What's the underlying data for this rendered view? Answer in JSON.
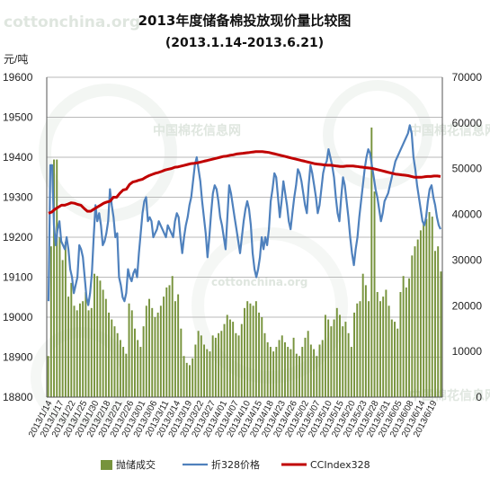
{
  "watermark": {
    "site": "cottonchina.org",
    "cn": "中国棉花信息网",
    "en": "cottonchina.org"
  },
  "chart_data": {
    "type": "bar+line",
    "title": "2013年度储备棉投放现价量比较图",
    "subtitle": "(2013.1.14-2013.6.21)",
    "ylabel_left": "元/吨",
    "ylim_left": [
      18800,
      19600
    ],
    "yticks_left": [
      18800,
      18900,
      19000,
      19100,
      19200,
      19300,
      19400,
      19500,
      19600
    ],
    "ylim_right": [
      0,
      70000
    ],
    "yticks_right": [
      0,
      10000,
      20000,
      30000,
      40000,
      50000,
      60000,
      70000
    ],
    "grid": "horizontal",
    "legend_position": "bottom",
    "x_labels": [
      "2013/1/14",
      "2013/1/17",
      "2013/1/22",
      "2013/1/25",
      "2013/1/30",
      "2013/2/18",
      "2013/2/21",
      "2013/2/26",
      "2013/3/01",
      "2013/3/06",
      "2013/3/11",
      "2013/3/14",
      "2013/3/19",
      "2013/3/22",
      "2013/3/27",
      "2013/4/01",
      "2013/4/07",
      "2013/4/10",
      "2013/4/15",
      "2013/4/18",
      "2013/4/23",
      "2013/4/26",
      "2013/5/02",
      "2013/5/07",
      "2013/5/10",
      "2013/5/15",
      "2013/5/20",
      "2013/5/23",
      "2013/5/28",
      "2013/5/31",
      "2013/6/05",
      "2013/6/08",
      "2013/6/14",
      "2013/6/19"
    ],
    "series": [
      {
        "name": "抛储成交",
        "type": "bar",
        "axis": "right",
        "color": "#77933c",
        "values": [
          9000,
          33000,
          52000,
          52000,
          35000,
          30000,
          34000,
          22000,
          25000,
          20000,
          19000,
          20500,
          21000,
          23000,
          19000,
          19500,
          27000,
          26500,
          25500,
          23500,
          21500,
          18500,
          17000,
          15500,
          14000,
          12500,
          11000,
          9500,
          20500,
          19000,
          15000,
          12500,
          11000,
          15500,
          20000,
          21500,
          19500,
          17500,
          18500,
          20000,
          22000,
          24000,
          24500,
          26500,
          21000,
          22500,
          15000,
          9000,
          7500,
          7000,
          8500,
          11500,
          14500,
          13500,
          11500,
          10500,
          10000,
          13500,
          13000,
          14000,
          14500,
          16000,
          18000,
          17000,
          16500,
          14000,
          13500,
          16000,
          19500,
          21000,
          20500,
          20000,
          21000,
          18500,
          17500,
          14000,
          12000,
          11000,
          10000,
          11000,
          12500,
          13500,
          12000,
          11000,
          10500,
          13000,
          9500,
          9000,
          11000,
          13000,
          14500,
          11500,
          10500,
          9000,
          11500,
          12500,
          18000,
          17000,
          15500,
          17000,
          19500,
          18000,
          15500,
          16500,
          14000,
          11000,
          18500,
          20500,
          21000,
          27000,
          24500,
          21000,
          59000,
          45000,
          23000,
          21000,
          22000,
          23500,
          20000,
          17000,
          16500,
          15000,
          23000,
          26500,
          24000,
          26000,
          31000,
          33000,
          34500,
          36500,
          38000,
          39000,
          40500,
          39500,
          32000,
          33000,
          27500
        ]
      },
      {
        "name": "折328价格",
        "type": "line",
        "axis": "left",
        "color": "#4f81bd",
        "values": [
          19040,
          19380,
          19380,
          19230,
          19180,
          19220,
          19240,
          19190,
          19180,
          19170,
          19200,
          19170,
          19120,
          19100,
          19060,
          19080,
          19100,
          19180,
          19170,
          19150,
          19100,
          19050,
          19030,
          19060,
          19110,
          19200,
          19280,
          19240,
          19260,
          19230,
          19180,
          19190,
          19210,
          19240,
          19320,
          19280,
          19250,
          19200,
          19210,
          19100,
          19080,
          19050,
          19040,
          19060,
          19120,
          19100,
          19090,
          19110,
          19120,
          19100,
          19160,
          19210,
          19260,
          19290,
          19300,
          19240,
          19250,
          19240,
          19200,
          19210,
          19220,
          19240,
          19230,
          19220,
          19210,
          19200,
          19230,
          19220,
          19210,
          19200,
          19240,
          19260,
          19250,
          19200,
          19160,
          19200,
          19230,
          19250,
          19280,
          19300,
          19340,
          19380,
          19400,
          19370,
          19340,
          19290,
          19250,
          19210,
          19150,
          19200,
          19260,
          19310,
          19330,
          19320,
          19290,
          19250,
          19230,
          19200,
          19170,
          19250,
          19330,
          19310,
          19280,
          19250,
          19220,
          19190,
          19160,
          19200,
          19240,
          19270,
          19290,
          19270,
          19230,
          19160,
          19120,
          19100,
          19120,
          19150,
          19200,
          19170,
          19200,
          19180,
          19220,
          19290,
          19320,
          19360,
          19350,
          19300,
          19250,
          19290,
          19340,
          19310,
          19280,
          19240,
          19220,
          19260,
          19300,
          19330,
          19370,
          19360,
          19340,
          19310,
          19280,
          19260,
          19330,
          19380,
          19360,
          19330,
          19300,
          19260,
          19280,
          19320,
          19360,
          19380,
          19390,
          19420,
          19400,
          19380,
          19350,
          19300,
          19260,
          19240,
          19300,
          19350,
          19330,
          19290,
          19250,
          19200,
          19160,
          19130,
          19170,
          19200,
          19250,
          19290,
          19330,
          19370,
          19400,
          19420,
          19410,
          19380,
          19350,
          19320,
          19300,
          19270,
          19240,
          19260,
          19290,
          19300,
          19310,
          19330,
          19350,
          19370,
          19390,
          19400,
          19410,
          19420,
          19430,
          19440,
          19450,
          19460,
          19480,
          19460,
          19400,
          19370,
          19330,
          19300,
          19270,
          19240,
          19230,
          19250,
          19290,
          19320,
          19330,
          19300,
          19280,
          19250,
          19230,
          19220
        ]
      },
      {
        "name": "CCIndex328",
        "type": "line",
        "axis": "left",
        "color": "#c00000",
        "values": [
          19260,
          19263,
          19270,
          19275,
          19280,
          19280,
          19283,
          19286,
          19285,
          19282,
          19280,
          19272,
          19265,
          19265,
          19270,
          19275,
          19280,
          19285,
          19288,
          19290,
          19300,
          19300,
          19310,
          19318,
          19320,
          19332,
          19338,
          19340,
          19343,
          19345,
          19350,
          19354,
          19357,
          19360,
          19362,
          19365,
          19368,
          19370,
          19372,
          19375,
          19376,
          19378,
          19380,
          19382,
          19384,
          19385,
          19386,
          19388,
          19390,
          19392,
          19394,
          19396,
          19398,
          19400,
          19402,
          19403,
          19405,
          19406,
          19408,
          19409,
          19410,
          19411,
          19412,
          19413,
          19414,
          19414,
          19414,
          19413,
          19412,
          19410,
          19408,
          19406,
          19404,
          19402,
          19400,
          19398,
          19396,
          19394,
          19392,
          19390,
          19388,
          19386,
          19384,
          19383,
          19382,
          19381,
          19380,
          19380,
          19379,
          19378,
          19377,
          19377,
          19378,
          19378,
          19378,
          19377,
          19376,
          19375,
          19374,
          19373,
          19372,
          19370,
          19368,
          19366,
          19364,
          19362,
          19360,
          19358,
          19357,
          19356,
          19355,
          19354,
          19352,
          19350,
          19350,
          19350,
          19351,
          19352,
          19352,
          19353,
          19353,
          19352
        ]
      }
    ]
  }
}
